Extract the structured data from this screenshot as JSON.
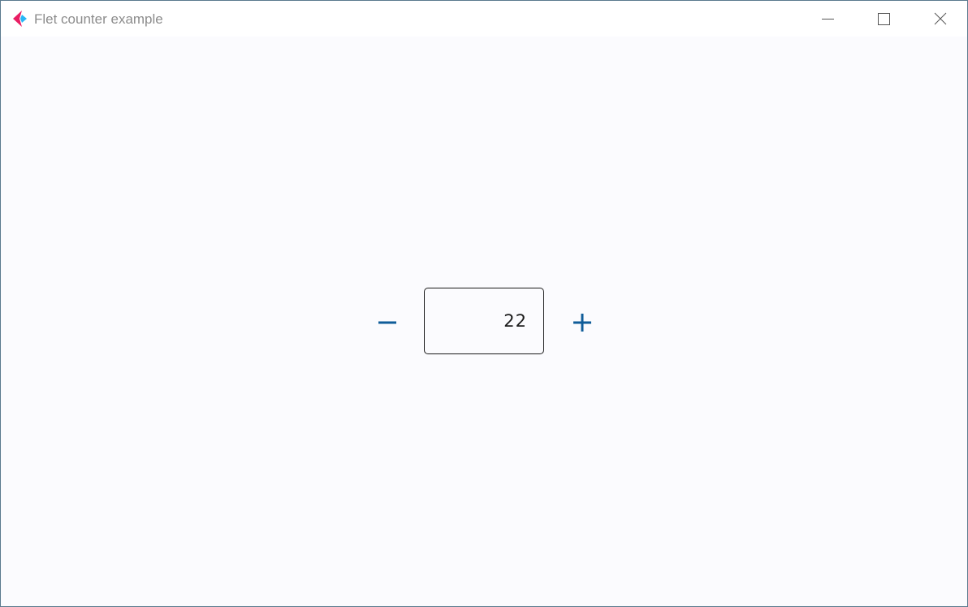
{
  "window": {
    "title": "Flet counter example"
  },
  "icons": {
    "app": "flet-logo-icon",
    "minimize": "minimize-icon",
    "maximize": "maximize-icon",
    "close": "close-icon",
    "decrement": "remove-icon",
    "increment": "add-icon"
  },
  "colors": {
    "accent": "#0f5c99",
    "logo_pink": "#e91e63",
    "logo_blue": "#29b6f6",
    "background": "#fbfbfe"
  },
  "counter": {
    "value": "22"
  }
}
